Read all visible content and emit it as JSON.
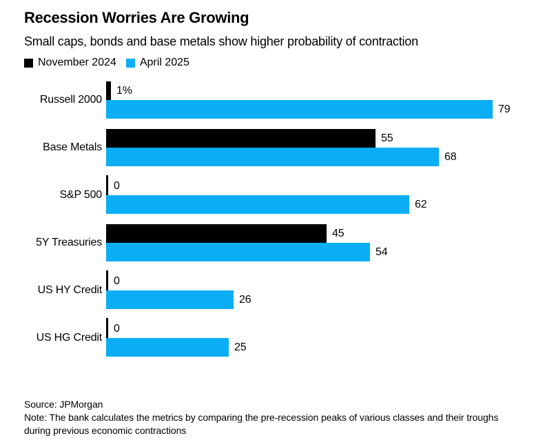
{
  "chart_data": {
    "type": "bar",
    "orientation": "horizontal",
    "title": "Recession Worries Are Growing",
    "subtitle": "Small caps, bonds and base metals show higher probability of contraction",
    "categories": [
      "Russell 2000",
      "Base Metals",
      "S&P 500",
      "5Y Treasuries",
      "US HY Credit",
      "US HG Credit"
    ],
    "series": [
      {
        "name": "November 2024",
        "color": "#000000",
        "values": [
          1,
          55,
          0,
          45,
          0,
          0
        ],
        "value_labels": [
          "1%",
          "55",
          "0",
          "45",
          "0",
          "0"
        ]
      },
      {
        "name": "April 2025",
        "color": "#0BAEF4",
        "values": [
          79,
          68,
          62,
          54,
          26,
          25
        ],
        "value_labels": [
          "79",
          "68",
          "62",
          "54",
          "26",
          "25"
        ]
      }
    ],
    "xlim": [
      0,
      80
    ],
    "units": "%",
    "grid": false,
    "legend_position": "top",
    "value_labels_shown": true,
    "source": "Source: JPMorgan",
    "note": "Note: The bank calculates the metrics by comparing the pre-recession peaks of various classes and their troughs during previous economic contractions"
  }
}
